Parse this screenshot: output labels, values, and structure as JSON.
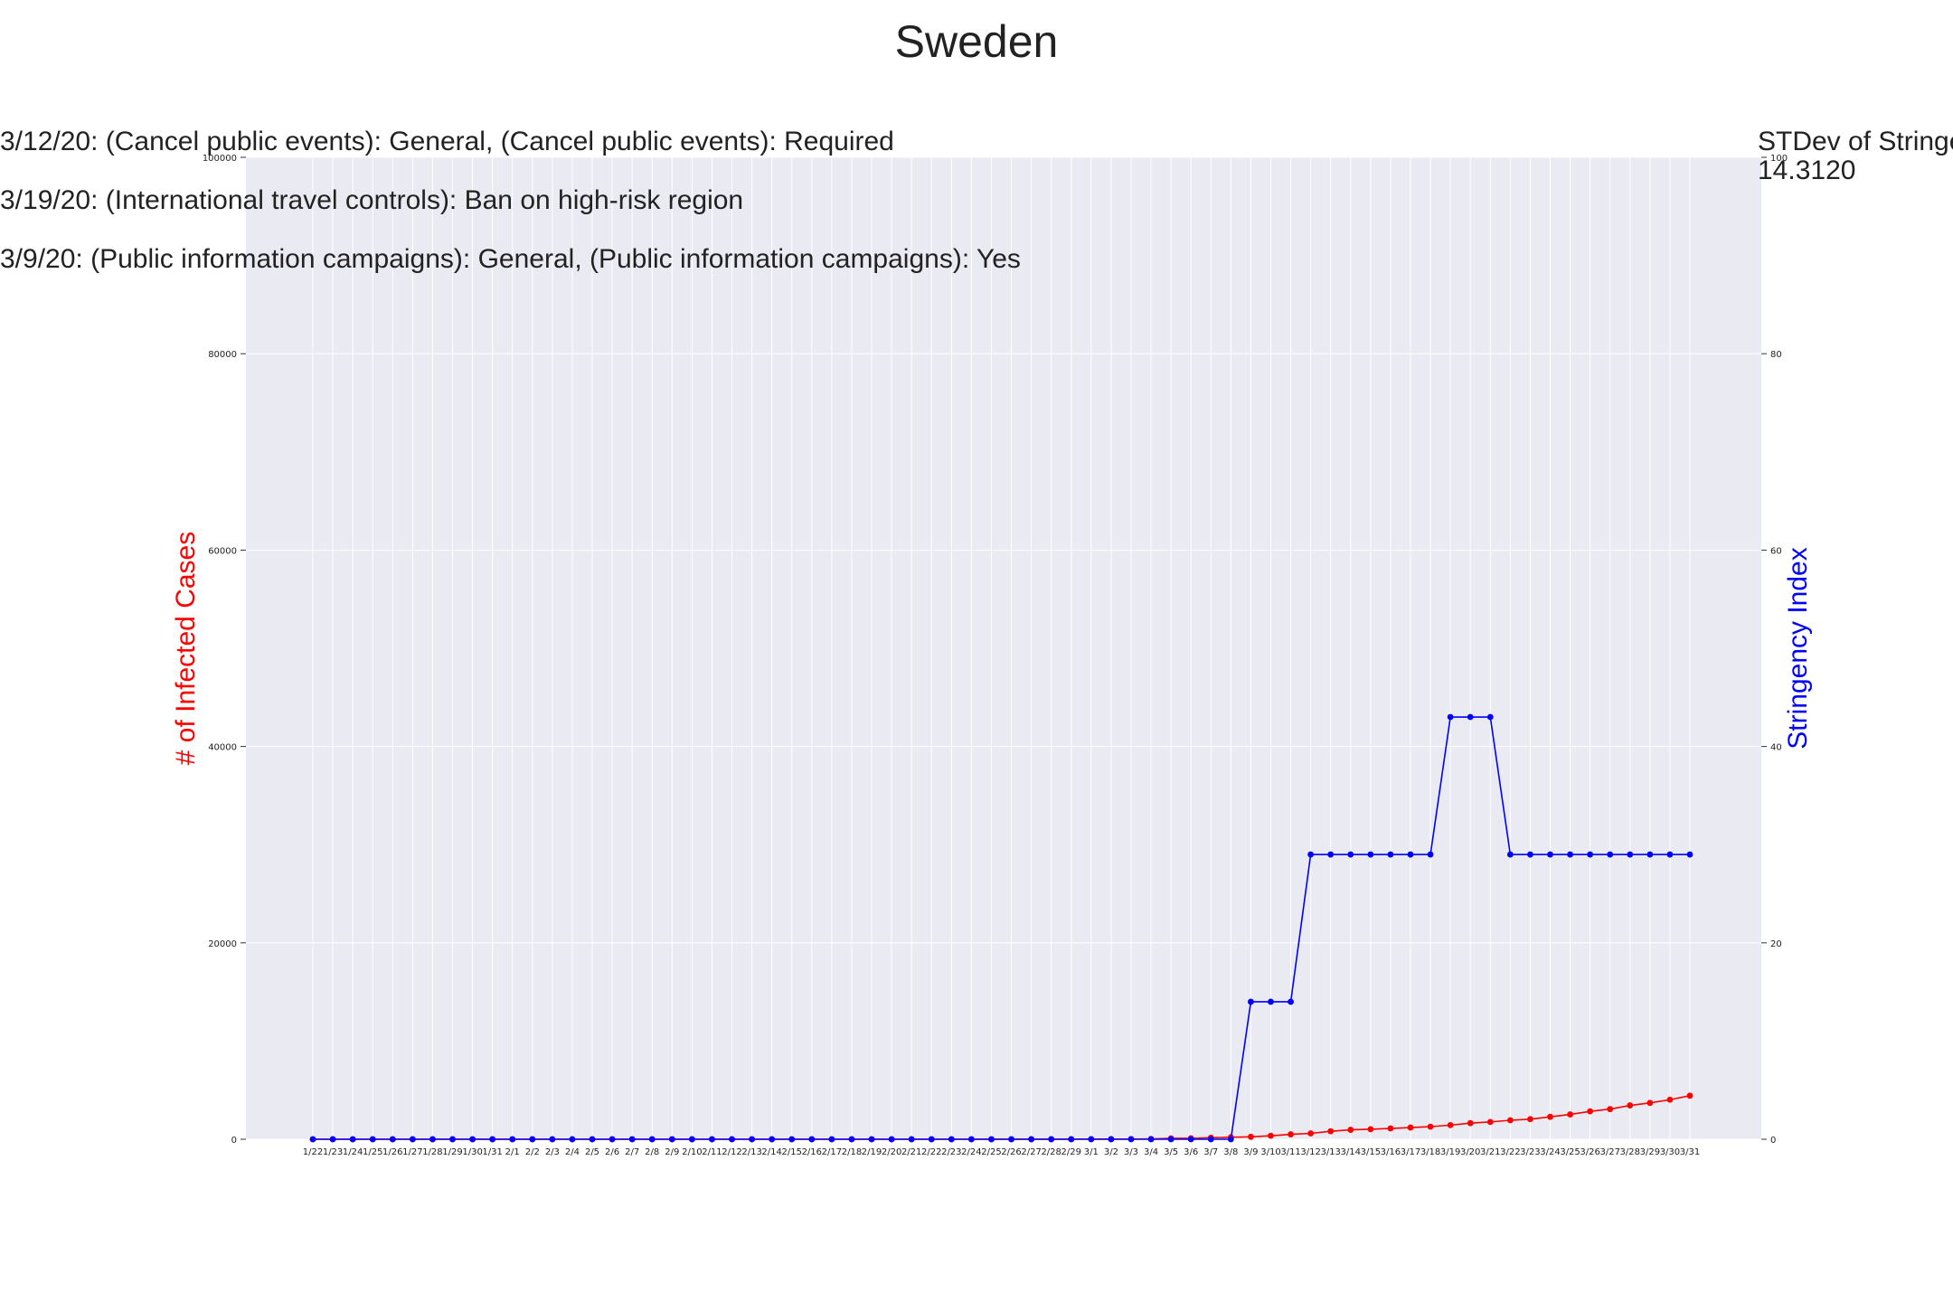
{
  "chart_data": {
    "type": "line",
    "title": "Sweden",
    "x": [
      "1/22",
      "1/23",
      "1/24",
      "1/25",
      "1/26",
      "1/27",
      "1/28",
      "1/29",
      "1/30",
      "1/31",
      "2/1",
      "2/2",
      "2/3",
      "2/4",
      "2/5",
      "2/6",
      "2/7",
      "2/8",
      "2/9",
      "2/10",
      "2/11",
      "2/12",
      "2/13",
      "2/14",
      "2/15",
      "2/16",
      "2/17",
      "2/18",
      "2/19",
      "2/20",
      "2/21",
      "2/22",
      "2/23",
      "2/24",
      "2/25",
      "2/26",
      "2/27",
      "2/28",
      "2/29",
      "3/1",
      "3/2",
      "3/3",
      "3/4",
      "3/5",
      "3/6",
      "3/7",
      "3/8",
      "3/9",
      "3/10",
      "3/11",
      "3/12",
      "3/13",
      "3/14",
      "3/15",
      "3/16",
      "3/17",
      "3/18",
      "3/19",
      "3/20",
      "3/21",
      "3/22",
      "3/23",
      "3/24",
      "3/25",
      "3/26",
      "3/27",
      "3/28",
      "3/29",
      "3/30",
      "3/31"
    ],
    "series": [
      {
        "axis": "left",
        "color": "#ff0000",
        "values": [
          0,
          0,
          0,
          0,
          0,
          0,
          0,
          0,
          0,
          0,
          1,
          1,
          1,
          1,
          1,
          1,
          1,
          1,
          1,
          1,
          1,
          1,
          1,
          1,
          1,
          1,
          1,
          1,
          1,
          1,
          1,
          1,
          1,
          1,
          2,
          2,
          7,
          7,
          12,
          14,
          15,
          21,
          35,
          94,
          101,
          161,
          203,
          248,
          355,
          500,
          599,
          814,
          961,
          1022,
          1103,
          1190,
          1279,
          1439,
          1639,
          1763,
          1934,
          2046,
          2286,
          2526,
          2840,
          3069,
          3447,
          3700,
          4028,
          4435
        ]
      },
      {
        "axis": "right",
        "color": "#0000ff",
        "values": [
          0,
          0,
          0,
          0,
          0,
          0,
          0,
          0,
          0,
          0,
          0,
          0,
          0,
          0,
          0,
          0,
          0,
          0,
          0,
          0,
          0,
          0,
          0,
          0,
          0,
          0,
          0,
          0,
          0,
          0,
          0,
          0,
          0,
          0,
          0,
          0,
          0,
          0,
          0,
          0,
          0,
          0,
          0,
          0,
          0,
          0,
          0,
          14,
          14,
          14,
          29,
          29,
          29,
          29,
          29,
          29,
          29,
          43,
          43,
          43,
          29,
          29,
          29,
          29,
          29,
          29,
          29,
          29,
          29,
          29
        ]
      }
    ],
    "ylabel_left": "# of Infected Cases",
    "ylabel_right": "Stringency Index",
    "ylim_left": [
      0,
      100000
    ],
    "ylim_right": [
      0,
      100
    ],
    "yticks_left": [
      "0",
      "20000",
      "40000",
      "60000",
      "80000",
      "100000"
    ],
    "yticks_right": [
      "0",
      "20",
      "40",
      "60",
      "80",
      "100"
    ],
    "grid": true,
    "annotations": [
      "3/12/20: (Cancel public events): General, (Cancel public events): Required",
      "3/19/20: (International travel controls): Ban on high-risk region",
      "3/9/20: (Public information campaigns): General, (Public information campaigns): Yes"
    ],
    "stdev_label": "STDev of Stringency Index",
    "stdev_value": "14.3120"
  },
  "colors": {
    "plot_background": "#eaeaf2",
    "grid": "#ffffff",
    "left_axis_label": "#ff0000",
    "right_axis_label": "#0000ff"
  }
}
